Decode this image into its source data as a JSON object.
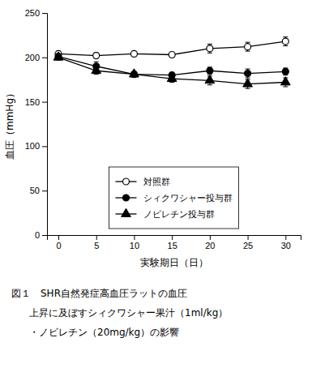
{
  "chart_data": {
    "type": "line",
    "x": [
      0,
      5,
      10,
      15,
      20,
      25,
      30
    ],
    "series": [
      {
        "name": "対照群",
        "color": "#000000",
        "marker": "circle-open",
        "values": [
          204,
          202,
          204,
          203,
          210,
          212,
          218
        ],
        "errors": [
          3,
          3,
          3,
          3,
          5,
          5,
          5
        ]
      },
      {
        "name": "シィクワシャー投与群",
        "color": "#000000",
        "marker": "circle",
        "values": [
          201,
          190,
          181,
          180,
          185,
          182,
          184
        ],
        "errors": [
          3,
          5,
          3,
          3,
          4,
          5,
          4
        ]
      },
      {
        "name": "ノビレチン投与群",
        "color": "#000000",
        "marker": "triangle",
        "values": [
          200,
          185,
          181,
          176,
          174,
          170,
          172
        ],
        "errors": [
          3,
          4,
          3,
          4,
          5,
          5,
          5
        ]
      }
    ],
    "x_label": "実験期日（日）",
    "y_label": "血圧（mmHg）",
    "xlim": [
      -1.5,
      32
    ],
    "xticks": [
      0,
      5,
      10,
      15,
      20,
      25,
      30
    ],
    "ylim": [
      0,
      250
    ],
    "yticks": [
      0,
      50,
      100,
      150,
      200,
      250
    ],
    "grid": false,
    "legend": "lower center",
    "annotations": [
      "図１　SHR自然発症高血圧ラットの血圧",
      "上昇に及ぼすシィクワシャー果汁（1ml/kg）",
      "・ノビレチン（20mg/kg）の影響"
    ]
  }
}
